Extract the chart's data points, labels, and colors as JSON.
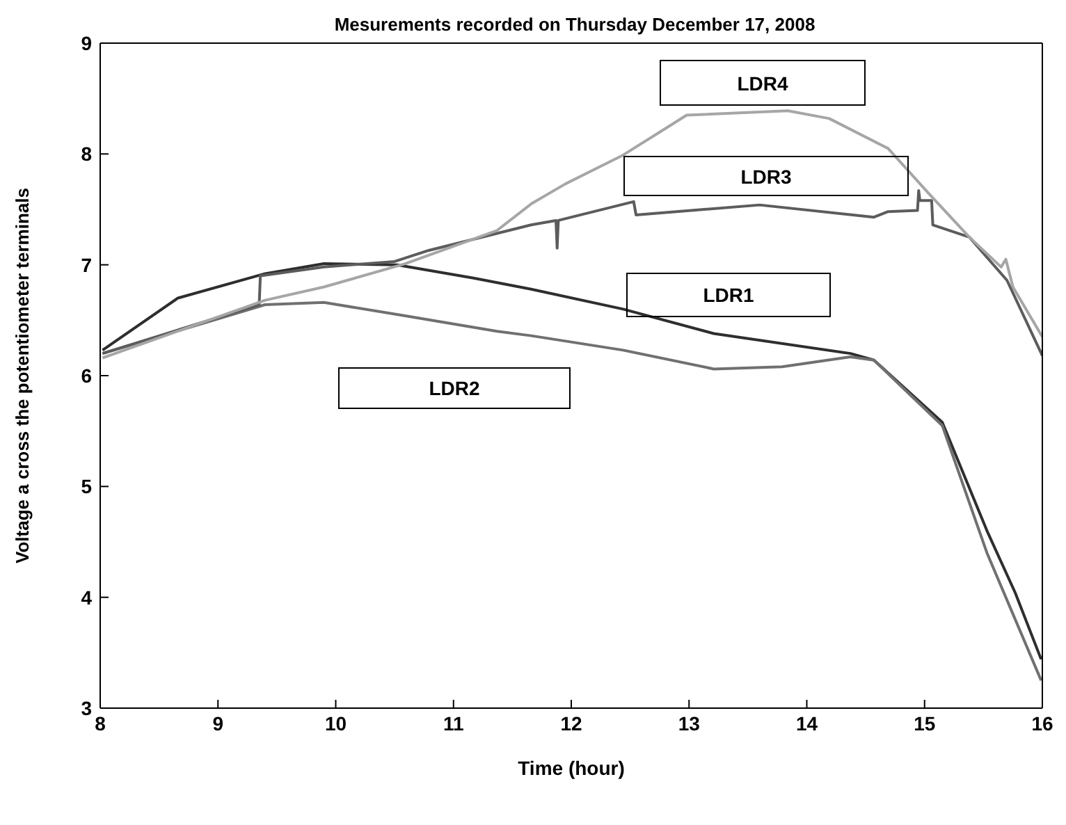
{
  "chart_data": {
    "type": "line",
    "title": "Mesurements  recorded on Thursday December 17, 2008",
    "xlabel": "Time (hour)",
    "ylabel": "Voltage a cross the potentiometer terminals",
    "xlim": [
      8,
      16
    ],
    "xticks": [
      8,
      9,
      10,
      11,
      12,
      13,
      14,
      15,
      16
    ],
    "ylim": [
      3,
      9
    ],
    "yticks": [
      3,
      4,
      5,
      6,
      7,
      8,
      9
    ],
    "grid": false,
    "legend": false,
    "marker": "none",
    "line_style": "solid",
    "series": [
      {
        "name": "LDR1",
        "color": "#2e2e2e",
        "x": [
          8.02,
          8.66,
          9.4,
          9.9,
          10.52,
          11.17,
          11.66,
          12.44,
          13.21,
          14.37,
          14.57,
          15.15,
          15.53,
          15.77,
          15.99
        ],
        "values": [
          6.23,
          6.7,
          6.92,
          7.01,
          7.0,
          6.88,
          6.78,
          6.6,
          6.38,
          6.2,
          6.14,
          5.58,
          4.6,
          4.04,
          3.44
        ]
      },
      {
        "name": "LDR2",
        "color": "#707070",
        "x": [
          8.02,
          9.4,
          9.9,
          10.59,
          11.37,
          11.66,
          12.44,
          13.21,
          13.79,
          14.37,
          14.57,
          15.15,
          15.53,
          15.99
        ],
        "values": [
          6.2,
          6.64,
          6.66,
          6.54,
          6.4,
          6.36,
          6.23,
          6.06,
          6.08,
          6.17,
          6.14,
          5.55,
          4.4,
          3.25
        ]
      },
      {
        "name": "LDR3",
        "color": "#5c5c5c",
        "x": [
          8.02,
          9.35,
          9.36,
          9.9,
          10.5,
          10.79,
          11.66,
          11.87,
          11.88,
          11.89,
          12.53,
          12.55,
          13.6,
          14.57,
          14.69,
          14.94,
          14.95,
          14.96,
          15.06,
          15.07,
          15.38,
          15.7,
          16.0
        ],
        "values": [
          6.2,
          6.64,
          6.9,
          6.98,
          7.03,
          7.13,
          7.36,
          7.4,
          7.15,
          7.4,
          7.57,
          7.45,
          7.54,
          7.43,
          7.48,
          7.49,
          7.67,
          7.58,
          7.58,
          7.36,
          7.25,
          6.86,
          6.18
        ]
      },
      {
        "name": "LDR4",
        "color": "#a6a6a6",
        "x": [
          8.02,
          9.4,
          9.9,
          10.59,
          11.37,
          11.66,
          11.95,
          12.44,
          12.83,
          12.98,
          13.84,
          14.19,
          14.69,
          15.03,
          15.38,
          15.65,
          15.69,
          15.75,
          16.0
        ],
        "values": [
          6.16,
          6.68,
          6.8,
          7.01,
          7.31,
          7.55,
          7.73,
          7.99,
          8.25,
          8.35,
          8.39,
          8.32,
          8.05,
          7.65,
          7.25,
          6.98,
          7.05,
          6.8,
          6.35
        ]
      }
    ]
  }
}
